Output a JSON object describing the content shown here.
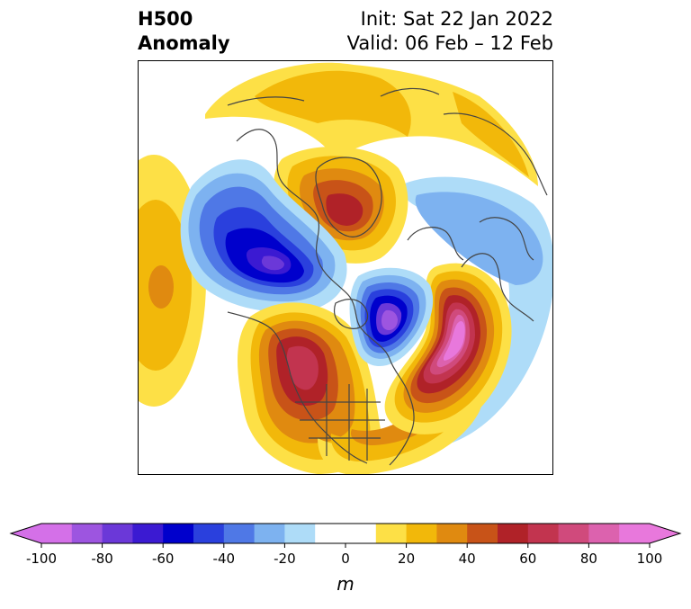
{
  "header": {
    "left_line1": "H500",
    "left_line2": "Anomaly",
    "right_line1": "Init: Sat 22 Jan 2022",
    "right_line2": "Valid: 06 Feb – 12 Feb"
  },
  "colorbar": {
    "unit": "m",
    "min": -100,
    "max": 100,
    "tick_values": [
      -100,
      -80,
      -60,
      -40,
      -20,
      0,
      20,
      40,
      60,
      80,
      100
    ],
    "tick_labels": [
      "-100",
      "-80",
      "-60",
      "-40",
      "-20",
      "0",
      "20",
      "40",
      "60",
      "80",
      "100"
    ],
    "bins": [
      {
        "from": -100,
        "to": -90,
        "color": "#d470e8"
      },
      {
        "from": -90,
        "to": -80,
        "color": "#9d55e0"
      },
      {
        "from": -80,
        "to": -70,
        "color": "#6b38d8"
      },
      {
        "from": -70,
        "to": -60,
        "color": "#3b1ad2"
      },
      {
        "from": -60,
        "to": -50,
        "color": "#0000cc"
      },
      {
        "from": -50,
        "to": -40,
        "color": "#2a40dd"
      },
      {
        "from": -40,
        "to": -30,
        "color": "#4f78e6"
      },
      {
        "from": -30,
        "to": -20,
        "color": "#7db2f0"
      },
      {
        "from": -20,
        "to": -10,
        "color": "#aedcf8"
      },
      {
        "from": -10,
        "to": 10,
        "color": "#ffffff"
      },
      {
        "from": 10,
        "to": 20,
        "color": "#fde046"
      },
      {
        "from": 20,
        "to": 30,
        "color": "#f2b80a"
      },
      {
        "from": 30,
        "to": 40,
        "color": "#e08a10"
      },
      {
        "from": 40,
        "to": 50,
        "color": "#c85318"
      },
      {
        "from": 50,
        "to": 60,
        "color": "#b02228"
      },
      {
        "from": 60,
        "to": 70,
        "color": "#c2344f"
      },
      {
        "from": 70,
        "to": 80,
        "color": "#d04a7c"
      },
      {
        "from": 80,
        "to": 90,
        "color": "#dc62ae"
      },
      {
        "from": 90,
        "to": 100,
        "color": "#e878dc"
      }
    ],
    "extend_low_color": "#d470e8",
    "extend_high_color": "#e878dc"
  },
  "map": {
    "projection": "north-polar",
    "coastline_color": "#444444",
    "anomaly_centers": [
      {
        "region": "Greenland / Arctic",
        "sign": "positive",
        "peak": 55
      },
      {
        "region": "Western North America",
        "sign": "positive",
        "peak": 65
      },
      {
        "region": "North Atlantic",
        "sign": "positive",
        "peak": 100
      },
      {
        "region": "North Pacific",
        "sign": "positive",
        "peak": 40
      },
      {
        "region": "Gulf of Alaska / Bering",
        "sign": "negative",
        "peak": -90
      },
      {
        "region": "Northeastern Canada",
        "sign": "negative",
        "peak": -95
      },
      {
        "region": "Northern Russia",
        "sign": "negative",
        "peak": -35
      }
    ]
  }
}
